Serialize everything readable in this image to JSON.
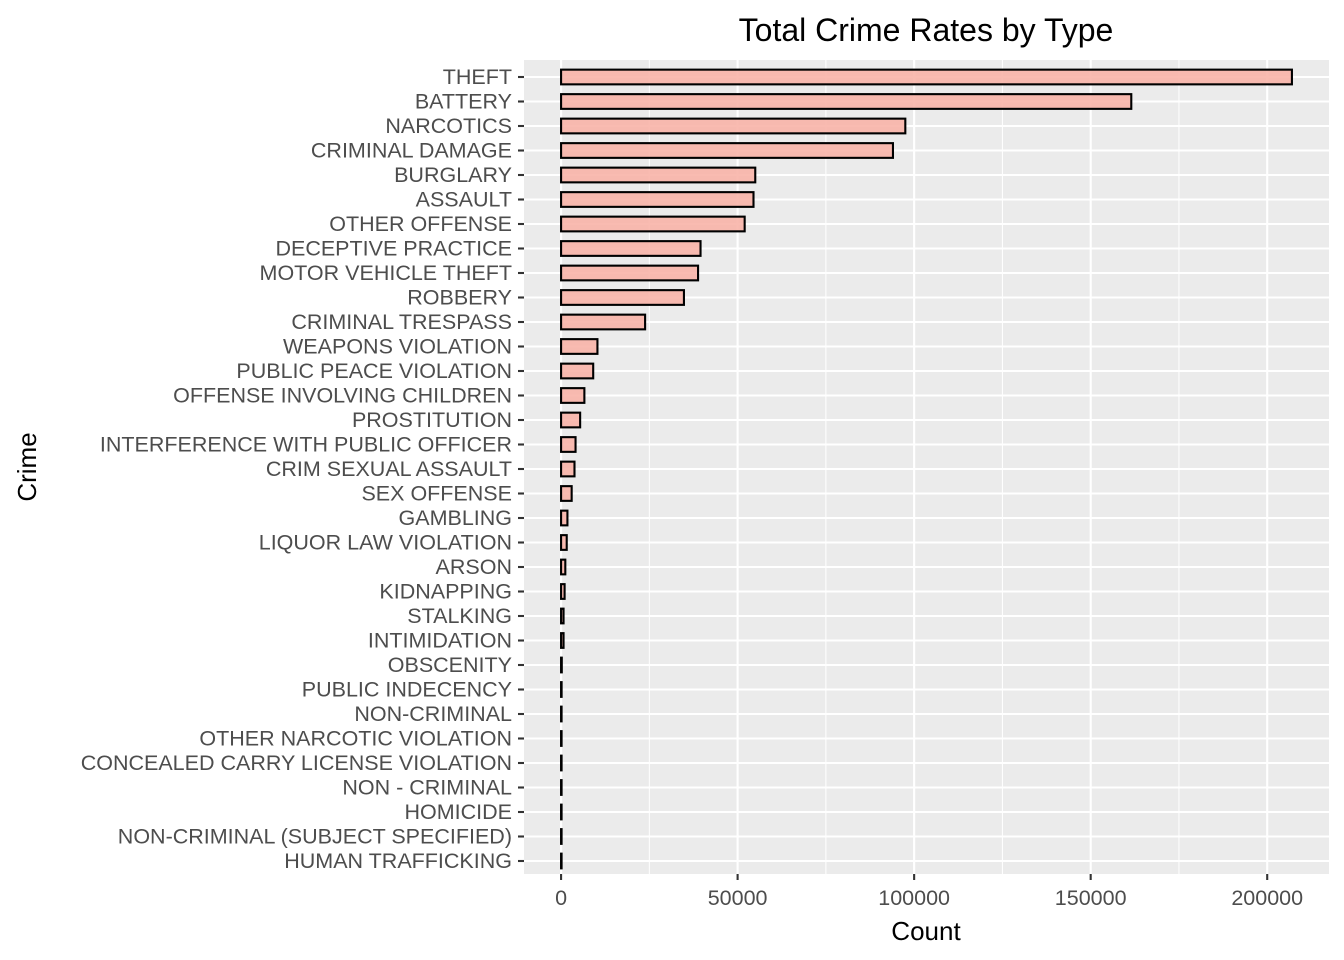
{
  "colors": {
    "bar_fill": "#f8b4a8",
    "bar_outline": "#000000",
    "panel": "#ebebeb",
    "grid": "#ffffff",
    "tick_text": "#4d4d4d"
  },
  "chart_data": {
    "type": "bar",
    "orientation": "horizontal",
    "title": "Total Crime Rates by Type",
    "xlabel": "Count",
    "ylabel": "Crime",
    "xlim": [
      -10500,
      217500
    ],
    "x_ticks": [
      0,
      50000,
      100000,
      150000,
      200000
    ],
    "x_tick_labels": [
      "0",
      "50000",
      "100000",
      "150000",
      "200000"
    ],
    "grid": true,
    "legend": "none",
    "categories": [
      "THEFT",
      "BATTERY",
      "NARCOTICS",
      "CRIMINAL DAMAGE",
      "BURGLARY",
      "ASSAULT",
      "OTHER OFFENSE",
      "DECEPTIVE PRACTICE",
      "MOTOR VEHICLE THEFT",
      "ROBBERY",
      "CRIMINAL TRESPASS",
      "WEAPONS VIOLATION",
      "PUBLIC PEACE VIOLATION",
      "OFFENSE INVOLVING CHILDREN",
      "PROSTITUTION",
      "INTERFERENCE WITH PUBLIC OFFICER",
      "CRIM SEXUAL ASSAULT",
      "SEX OFFENSE",
      "GAMBLING",
      "LIQUOR LAW VIOLATION",
      "ARSON",
      "KIDNAPPING",
      "STALKING",
      "INTIMIDATION",
      "OBSCENITY",
      "PUBLIC INDECENCY",
      "NON-CRIMINAL",
      "OTHER NARCOTIC VIOLATION",
      "CONCEALED CARRY LICENSE VIOLATION",
      "NON - CRIMINAL",
      "HOMICIDE",
      "NON-CRIMINAL (SUBJECT SPECIFIED)",
      "HUMAN TRAFFICKING"
    ],
    "values": [
      207000,
      161500,
      97500,
      94000,
      55000,
      54500,
      52000,
      39500,
      38800,
      34800,
      23800,
      10300,
      9100,
      6600,
      5400,
      4100,
      3800,
      3000,
      1800,
      1600,
      1200,
      1000,
      700,
      700,
      200,
      150,
      120,
      100,
      80,
      60,
      50,
      40,
      30
    ]
  }
}
